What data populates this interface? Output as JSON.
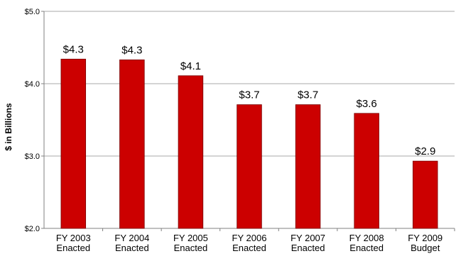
{
  "chart_data": {
    "type": "bar",
    "title": "",
    "xlabel": "",
    "ylabel": "$ in Billions",
    "ylim": [
      2.0,
      5.0
    ],
    "yticks": [
      2.0,
      3.0,
      4.0,
      5.0
    ],
    "ytick_labels": [
      "$2.0",
      "$3.0",
      "$4.0",
      "$5.0"
    ],
    "categories": [
      [
        "FY 2003",
        "Enacted"
      ],
      [
        "FY 2004",
        "Enacted"
      ],
      [
        "FY 2005",
        "Enacted"
      ],
      [
        "FY 2006",
        "Enacted"
      ],
      [
        "FY 2007",
        "Enacted"
      ],
      [
        "FY 2008",
        "Enacted"
      ],
      [
        "FY 2009",
        "Budget"
      ]
    ],
    "values": [
      4.34,
      4.33,
      4.11,
      3.71,
      3.71,
      3.59,
      2.93
    ],
    "data_labels": [
      "$4.3",
      "$4.3",
      "$4.1",
      "$3.7",
      "$3.7",
      "$3.6",
      "$2.9"
    ],
    "grid": true,
    "legend": "none",
    "bar_color": "#cc0000"
  }
}
